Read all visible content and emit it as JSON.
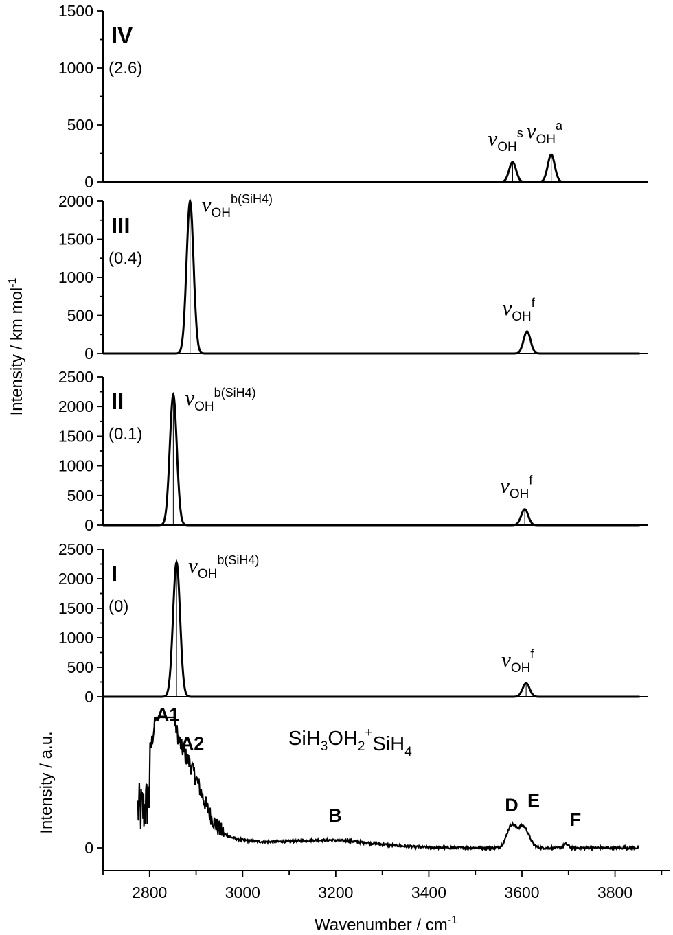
{
  "chart_data": {
    "type": "line",
    "xlabel": "Wavenumber / cm",
    "xlabel_sup": "-1",
    "xlim": [
      2700,
      3870
    ],
    "x_ticks": [
      "2800",
      "3000",
      "3200",
      "3400",
      "3600",
      "3800"
    ],
    "ylabel_calc": "Intensity / km mol",
    "ylabel_calc_sup": "-1",
    "ylabel_exp": "Intensity / a.u.",
    "panels": [
      {
        "label": "IV",
        "sub": "(2.6)",
        "ylim": [
          0,
          1500
        ],
        "y_ticks": [
          0,
          500,
          1000,
          1500
        ],
        "peaks": [
          {
            "x": 3580,
            "y": 175,
            "annotation": {
              "sub": "OH",
              "sup": "s"
            }
          },
          {
            "x": 3663,
            "y": 240,
            "annotation": {
              "sub": "OH",
              "sup": "a"
            }
          }
        ]
      },
      {
        "label": "III",
        "sub": "(0.4)",
        "ylim": [
          0,
          2000
        ],
        "y_ticks": [
          0,
          500,
          1000,
          1500,
          2000
        ],
        "peaks": [
          {
            "x": 2887,
            "y": 2000,
            "annotation": {
              "sub": "OH",
              "sup": "b(SiH4)"
            }
          },
          {
            "x": 3611,
            "y": 290,
            "annotation": {
              "sub": "OH",
              "sup": "f"
            }
          }
        ]
      },
      {
        "label": "II",
        "sub": "(0.1)",
        "ylim": [
          0,
          2500
        ],
        "y_ticks": [
          0,
          500,
          1000,
          1500,
          2000,
          2500
        ],
        "peaks": [
          {
            "x": 2851,
            "y": 2200,
            "annotation": {
              "sub": "OH",
              "sup": "b(SiH4)"
            }
          },
          {
            "x": 3606,
            "y": 270,
            "annotation": {
              "sub": "OH",
              "sup": "f"
            }
          }
        ]
      },
      {
        "label": "I",
        "sub": "(0)",
        "ylim": [
          0,
          2500
        ],
        "y_ticks": [
          0,
          500,
          1000,
          1500,
          2000,
          2500
        ],
        "peaks": [
          {
            "x": 2858,
            "y": 2280,
            "annotation": {
              "sub": "OH",
              "sup": "b(SiH4)"
            }
          },
          {
            "x": 3609,
            "y": 230,
            "annotation": {
              "sub": "OH",
              "sup": "f"
            }
          }
        ]
      }
    ],
    "experimental": {
      "title_parts": [
        "SiH",
        "3",
        "OH",
        "2",
        "+",
        "SiH",
        "4"
      ],
      "y_tick": "0",
      "x_range": [
        2775,
        3850
      ],
      "bands": [
        {
          "label": "A1",
          "x": 2830,
          "height": 0.78
        },
        {
          "label": "A2",
          "x": 2875,
          "height": 0.5
        },
        {
          "label": "B",
          "x": 3190,
          "height": 0.055
        },
        {
          "label": "D",
          "x": 3577,
          "height": 0.17
        },
        {
          "label": "E",
          "x": 3603,
          "height": 0.17
        },
        {
          "label": "F",
          "x": 3695,
          "height": 0.03
        }
      ]
    }
  }
}
